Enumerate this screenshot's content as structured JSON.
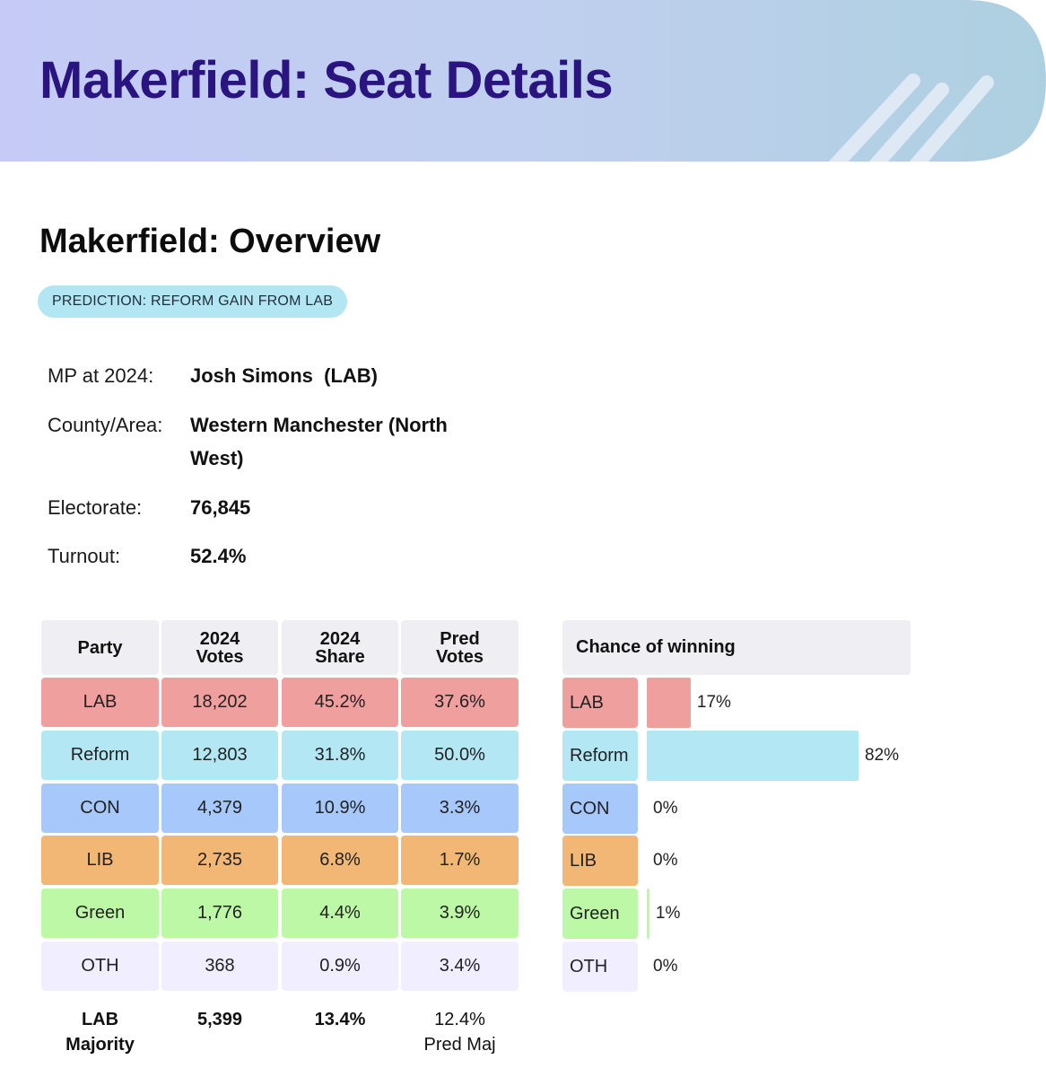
{
  "header": {
    "title": "Makerfield: Seat Details"
  },
  "overview": {
    "title": "Makerfield: Overview",
    "prediction": "PREDICTION: REFORM GAIN FROM LAB"
  },
  "info": {
    "mp_label": "MP at 2024:",
    "mp_value": "Josh Simons  (LAB)",
    "area_label": "County/Area:",
    "area_value": "Western Manchester (North West)",
    "electorate_label": "Electorate:",
    "electorate_value": "76,845",
    "turnout_label": "Turnout:",
    "turnout_value": "52.4%"
  },
  "colors": {
    "LAB": "#efa09e",
    "Reform": "#b2e7f3",
    "CON": "#a6c8fb",
    "LIB": "#f2b775",
    "Green": "#bdf8a6",
    "OTH": "#f1efff",
    "header": "#efeff3",
    "banner_title": "#2a1580"
  },
  "table": {
    "headers": [
      "Party",
      "2024\nVotes",
      "2024\nShare",
      "Pred\nVotes"
    ],
    "rows": [
      {
        "party": "LAB",
        "votes": "18,202",
        "share": "45.2%",
        "pred": "37.6%"
      },
      {
        "party": "Reform",
        "votes": "12,803",
        "share": "31.8%",
        "pred": "50.0%"
      },
      {
        "party": "CON",
        "votes": "4,379",
        "share": "10.9%",
        "pred": "3.3%"
      },
      {
        "party": "LIB",
        "votes": "2,735",
        "share": "6.8%",
        "pred": "1.7%"
      },
      {
        "party": "Green",
        "votes": "1,776",
        "share": "4.4%",
        "pred": "3.9%"
      },
      {
        "party": "OTH",
        "votes": "368",
        "share": "0.9%",
        "pred": "3.4%"
      }
    ],
    "footer": {
      "majority_label": "LAB\nMajority",
      "majority_votes": "5,399",
      "majority_share": "13.4%",
      "pred_maj": "12.4%\nPred Maj"
    }
  },
  "chance": {
    "header": "Chance of winning",
    "rows": [
      {
        "party": "LAB",
        "pct": 17,
        "label": "17%"
      },
      {
        "party": "Reform",
        "pct": 82,
        "label": "82%"
      },
      {
        "party": "CON",
        "pct": 0,
        "label": "0%"
      },
      {
        "party": "LIB",
        "pct": 0,
        "label": "0%"
      },
      {
        "party": "Green",
        "pct": 1,
        "label": "1%"
      },
      {
        "party": "OTH",
        "pct": 0,
        "label": "0%"
      }
    ]
  }
}
